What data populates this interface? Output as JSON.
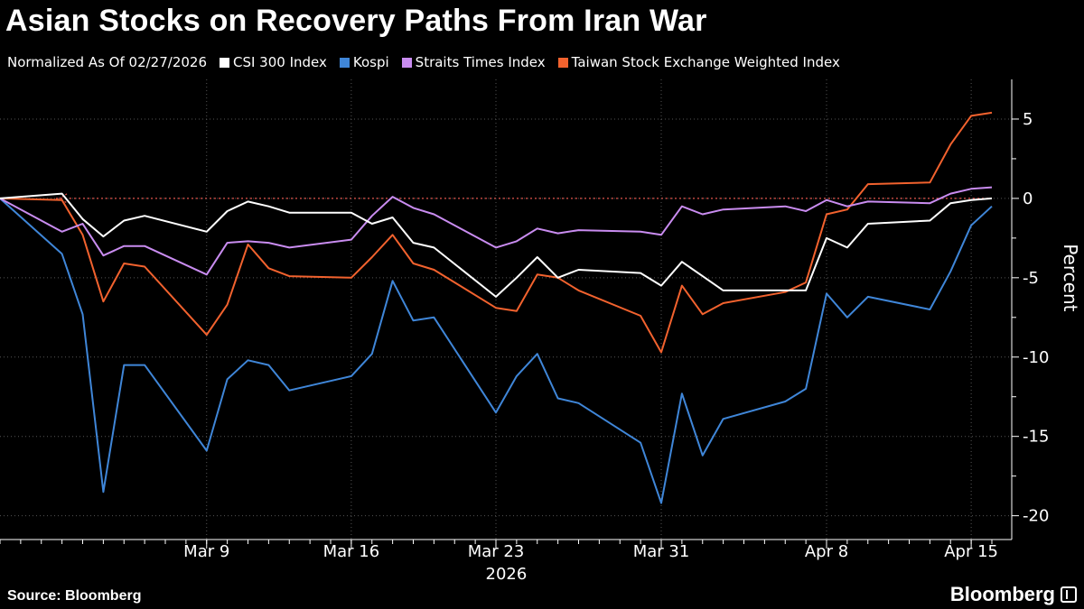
{
  "title": "Asian Stocks on Recovery Paths From Iran War",
  "legend_note": "Normalized As Of 02/27/2026",
  "source": "Source: Bloomberg",
  "brand": "Bloomberg",
  "chart_data": {
    "type": "line",
    "title": "Asian Stocks on Recovery Paths From Iran War",
    "ylabel": "Percent",
    "xlabel": "2026",
    "ylim": [
      -21.5,
      7.5
    ],
    "y_ticks": [
      5,
      0,
      -5,
      -10,
      -15,
      -20
    ],
    "x_ticks": [
      {
        "label": "Mar 9",
        "date": "2026-03-09"
      },
      {
        "label": "Mar 16",
        "date": "2026-03-16"
      },
      {
        "label": "Mar 23",
        "date": "2026-03-23"
      },
      {
        "label": "Mar 31",
        "date": "2026-03-31"
      },
      {
        "label": "Apr 8",
        "date": "2026-04-08"
      },
      {
        "label": "Apr 15",
        "date": "2026-04-15"
      }
    ],
    "year_label": "2026",
    "reference_line": 0,
    "legend_position": "top-left",
    "colors": {
      "csi": "#ffffff",
      "kospi": "#3f86d8",
      "sti": "#c98cf0",
      "twse": "#f2622e",
      "grid": "#555555",
      "ref": "#e0524a"
    },
    "x": [
      "2026-02-27",
      "2026-03-02",
      "2026-03-03",
      "2026-03-04",
      "2026-03-05",
      "2026-03-06",
      "2026-03-09",
      "2026-03-10",
      "2026-03-11",
      "2026-03-12",
      "2026-03-13",
      "2026-03-16",
      "2026-03-17",
      "2026-03-18",
      "2026-03-19",
      "2026-03-20",
      "2026-03-23",
      "2026-03-24",
      "2026-03-25",
      "2026-03-26",
      "2026-03-27",
      "2026-03-30",
      "2026-03-31",
      "2026-04-01",
      "2026-04-02",
      "2026-04-03",
      "2026-04-06",
      "2026-04-07",
      "2026-04-08",
      "2026-04-09",
      "2026-04-10",
      "2026-04-13",
      "2026-04-14",
      "2026-04-15",
      "2026-04-16"
    ],
    "series": [
      {
        "key": "csi",
        "name": "CSI 300 Index",
        "values": [
          0,
          0.3,
          -1.3,
          -2.4,
          -1.4,
          -1.1,
          -2.1,
          -0.8,
          -0.2,
          -0.5,
          -0.9,
          -0.9,
          -1.6,
          -1.2,
          -2.8,
          -3.1,
          -6.2,
          -5.0,
          -3.7,
          -5.0,
          -4.5,
          -4.7,
          -5.5,
          -4.0,
          -4.9,
          -5.8,
          -5.8,
          -5.8,
          -2.5,
          -3.1,
          -1.6,
          -1.4,
          -0.3,
          -0.1,
          0
        ]
      },
      {
        "key": "kospi",
        "name": "Kospi",
        "values": [
          0,
          -3.5,
          -7.3,
          -18.5,
          -10.5,
          -10.5,
          -15.9,
          -11.4,
          -10.2,
          -10.5,
          -12.1,
          -11.2,
          -9.8,
          -5.2,
          -7.7,
          -7.5,
          -13.5,
          -11.2,
          -9.8,
          -12.6,
          -12.9,
          -15.4,
          -19.2,
          -12.3,
          -16.2,
          -13.9,
          -12.8,
          -12.0,
          -6.0,
          -7.5,
          -6.2,
          -7.0,
          -4.6,
          -1.7,
          -0.5
        ]
      },
      {
        "key": "sti",
        "name": "Straits Times Index",
        "values": [
          0,
          -2.1,
          -1.6,
          -3.6,
          -3.0,
          -3.0,
          -4.8,
          -2.8,
          -2.7,
          -2.8,
          -3.1,
          -2.6,
          -1.1,
          0.1,
          -0.6,
          -1.0,
          -3.1,
          -2.7,
          -1.9,
          -2.2,
          -2.0,
          -2.1,
          -2.3,
          -0.5,
          -1.0,
          -0.7,
          -0.5,
          -0.8,
          -0.1,
          -0.5,
          -0.2,
          -0.3,
          0.3,
          0.6,
          0.7
        ]
      },
      {
        "key": "twse",
        "name": "Taiwan Stock Exchange Weighted Index",
        "values": [
          0,
          -0.1,
          -2.3,
          -6.5,
          -4.1,
          -4.3,
          -8.6,
          -6.7,
          -2.9,
          -4.4,
          -4.9,
          -5.0,
          -3.7,
          -2.3,
          -4.1,
          -4.5,
          -6.9,
          -7.1,
          -4.8,
          -5.0,
          -5.8,
          -7.4,
          -9.7,
          -5.5,
          -7.3,
          -6.6,
          -5.9,
          -5.3,
          -1.0,
          -0.7,
          0.9,
          1.0,
          3.4,
          5.2,
          5.4
        ]
      }
    ]
  }
}
